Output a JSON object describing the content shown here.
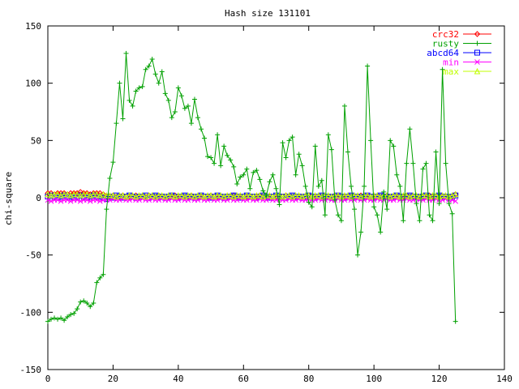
{
  "chart_data": {
    "type": "line",
    "title": "Hash size 131101",
    "xlabel": "",
    "ylabel": "chi-square",
    "xlim": [
      0,
      140
    ],
    "ylim": [
      -150,
      150
    ],
    "x_ticks": [
      "0",
      "20",
      "40",
      "60",
      "80",
      "100",
      "120",
      "140"
    ],
    "y_ticks": [
      "-150",
      "-100",
      "-50",
      "0",
      "50",
      "100",
      "150"
    ],
    "grid": false,
    "legend_position": "top-right",
    "series": [
      {
        "name": "crc32",
        "color": "#ff0000",
        "marker": "diamond",
        "values": [
          4,
          4,
          3,
          4,
          4,
          4,
          3,
          4,
          4,
          4,
          5,
          4,
          4,
          3,
          4,
          4,
          4,
          3,
          1,
          1,
          2,
          1,
          1,
          2,
          1,
          1,
          1,
          2,
          1,
          1,
          1,
          2,
          1,
          1,
          2,
          1,
          1,
          1,
          1,
          2,
          1,
          1,
          1,
          1,
          2,
          1,
          1,
          1,
          1,
          1,
          2,
          1,
          1,
          1,
          1,
          1,
          1,
          2,
          1,
          1,
          1,
          1,
          1,
          1,
          1,
          2,
          1,
          1,
          1,
          1,
          1,
          1,
          1,
          2,
          1,
          1,
          1,
          1,
          1,
          1,
          2,
          1,
          1,
          1,
          1,
          1,
          1,
          1,
          2,
          1,
          1,
          1,
          1,
          1,
          1,
          1,
          2,
          1,
          1,
          1,
          1,
          1,
          1,
          1,
          2,
          1,
          1,
          1,
          1,
          1,
          2,
          1,
          1,
          1,
          1,
          1,
          1,
          2,
          1,
          1,
          1,
          1,
          1,
          1,
          1,
          3
        ]
      },
      {
        "name": "rusty",
        "color": "#00a000",
        "marker": "plus",
        "values": [
          -108,
          -106,
          -105,
          -106,
          -105,
          -107,
          -104,
          -102,
          -101,
          -97,
          -91,
          -90,
          -92,
          -95,
          -92,
          -74,
          -70,
          -67,
          -10,
          17,
          31,
          65,
          100,
          69,
          126,
          85,
          80,
          93,
          96,
          97,
          112,
          115,
          121,
          108,
          100,
          110,
          91,
          85,
          70,
          75,
          96,
          89,
          78,
          80,
          65,
          86,
          70,
          60,
          52,
          36,
          35,
          30,
          55,
          28,
          45,
          37,
          33,
          27,
          12,
          18,
          20,
          25,
          8,
          22,
          24,
          16,
          6,
          2,
          14,
          20,
          8,
          -6,
          48,
          35,
          50,
          53,
          20,
          38,
          28,
          10,
          -4,
          -8,
          45,
          10,
          15,
          -15,
          55,
          42,
          -2,
          -15,
          -20,
          80,
          40,
          10,
          -10,
          -50,
          -30,
          10,
          115,
          50,
          -8,
          -15,
          -30,
          5,
          -10,
          50,
          45,
          20,
          10,
          -20,
          30,
          60,
          30,
          -5,
          -20,
          25,
          30,
          -15,
          -20,
          40,
          -5,
          112,
          30,
          -5,
          -14,
          -108
        ]
      },
      {
        "name": "abcd64",
        "color": "#0000ff",
        "marker": "square",
        "values": [
          1,
          2,
          1,
          0,
          1,
          2,
          1,
          1,
          0,
          1,
          2,
          1,
          0,
          1,
          2,
          1,
          1,
          0,
          -1,
          1,
          0,
          2,
          1,
          0,
          1,
          2,
          1,
          0,
          1,
          1,
          2,
          0,
          1,
          2,
          1,
          1,
          0,
          1,
          2,
          1,
          0,
          1,
          2,
          1,
          1,
          0,
          1,
          2,
          1,
          1,
          0,
          1,
          2,
          1,
          0,
          1,
          1,
          2,
          1,
          0,
          1,
          2,
          1,
          1,
          0,
          1,
          2,
          1,
          0,
          1,
          2,
          1,
          1,
          0,
          1,
          2,
          1,
          1,
          0,
          1,
          2,
          1,
          0,
          1,
          2,
          1,
          1,
          0,
          1,
          2,
          1,
          0,
          1,
          2,
          1,
          1,
          0,
          1,
          2,
          1,
          0,
          1,
          2,
          1,
          1,
          0,
          1,
          2,
          1,
          0,
          1,
          2,
          1,
          1,
          0,
          1,
          2,
          1,
          0,
          1,
          2,
          1,
          1,
          0,
          1,
          2
        ]
      },
      {
        "name": "min",
        "color": "#ff00ff",
        "marker": "x",
        "values": [
          -2,
          -3,
          -2,
          -2,
          -3,
          -2,
          -2,
          -3,
          -2,
          -2,
          -3,
          -2,
          -2,
          -3,
          -2,
          -2,
          -3,
          -2,
          -2,
          -2,
          -1,
          -2,
          -2,
          -1,
          -2,
          -2,
          -1,
          -2,
          -2,
          -1,
          -2,
          -2,
          -1,
          -2,
          -2,
          -1,
          -2,
          -2,
          -1,
          -2,
          -2,
          -1,
          -2,
          -2,
          -1,
          -2,
          -2,
          -1,
          -2,
          -2,
          -1,
          -2,
          -2,
          -1,
          -2,
          -2,
          -1,
          -2,
          -2,
          -1,
          -2,
          -2,
          -1,
          -2,
          -2,
          -1,
          -2,
          -2,
          -1,
          -2,
          -2,
          -1,
          -2,
          -2,
          -1,
          -2,
          -2,
          -1,
          -2,
          -2,
          -1,
          -2,
          -2,
          -1,
          -2,
          -2,
          -1,
          -2,
          -2,
          -1,
          -2,
          -2,
          -1,
          -2,
          -2,
          -1,
          -2,
          -2,
          -1,
          -2,
          -2,
          -1,
          -2,
          -2,
          -1,
          -2,
          -2,
          -1,
          -2,
          -2,
          -1,
          -2,
          -2,
          -1,
          -2,
          -2,
          -1,
          -2,
          -2,
          -1,
          -2,
          -2,
          -1,
          -2,
          -2,
          -3
        ]
      },
      {
        "name": "max",
        "color": "#c0ff00",
        "marker": "triangle",
        "values": [
          3,
          2,
          3,
          3,
          2,
          3,
          3,
          2,
          3,
          3,
          2,
          3,
          3,
          2,
          3,
          3,
          2,
          3,
          2,
          2,
          2,
          1,
          2,
          2,
          1,
          2,
          2,
          1,
          2,
          2,
          1,
          2,
          2,
          1,
          2,
          2,
          1,
          2,
          2,
          1,
          2,
          2,
          1,
          2,
          2,
          1,
          2,
          2,
          1,
          2,
          2,
          1,
          2,
          2,
          1,
          2,
          2,
          1,
          2,
          2,
          1,
          2,
          2,
          1,
          2,
          2,
          1,
          2,
          2,
          1,
          2,
          2,
          1,
          2,
          2,
          1,
          2,
          2,
          1,
          2,
          2,
          1,
          2,
          2,
          1,
          2,
          2,
          1,
          2,
          2,
          1,
          2,
          2,
          1,
          2,
          2,
          1,
          2,
          2,
          1,
          2,
          2,
          1,
          2,
          2,
          1,
          2,
          2,
          1,
          2,
          2,
          1,
          2,
          2,
          1,
          2,
          2,
          1,
          2,
          2,
          1,
          2,
          2,
          1,
          2,
          3
        ]
      }
    ]
  }
}
